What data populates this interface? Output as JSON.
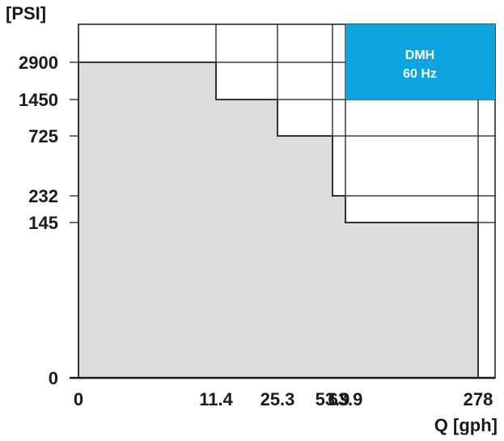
{
  "chart_data": {
    "type": "area",
    "ylabel": "[PSI]",
    "xlabel": "Q [gph]",
    "x_ticks": [
      "0",
      "11.4",
      "25.3",
      "53.9",
      "63.9",
      "278"
    ],
    "y_ticks": [
      "0",
      "145",
      "232",
      "725",
      "1450",
      "2900"
    ],
    "steps": [
      {
        "x_from": "0",
        "x_to": "11.4",
        "y": 2900
      },
      {
        "x_from": "11.4",
        "x_to": "25.3",
        "y": 1450
      },
      {
        "x_from": "25.3",
        "x_to": "53.9",
        "y": 725
      },
      {
        "x_from": "53.9",
        "x_to": "63.9",
        "y": 232
      },
      {
        "x_from": "63.9",
        "x_to": "278",
        "y": 145
      }
    ],
    "x_scale": "categorical (unequal spacing)",
    "y_scale": "non-linear",
    "grid": true,
    "fill_color": "#dcdcdc",
    "badge": {
      "line1": "DMH",
      "line2": "60 Hz",
      "color": "#0aa5e0"
    }
  }
}
